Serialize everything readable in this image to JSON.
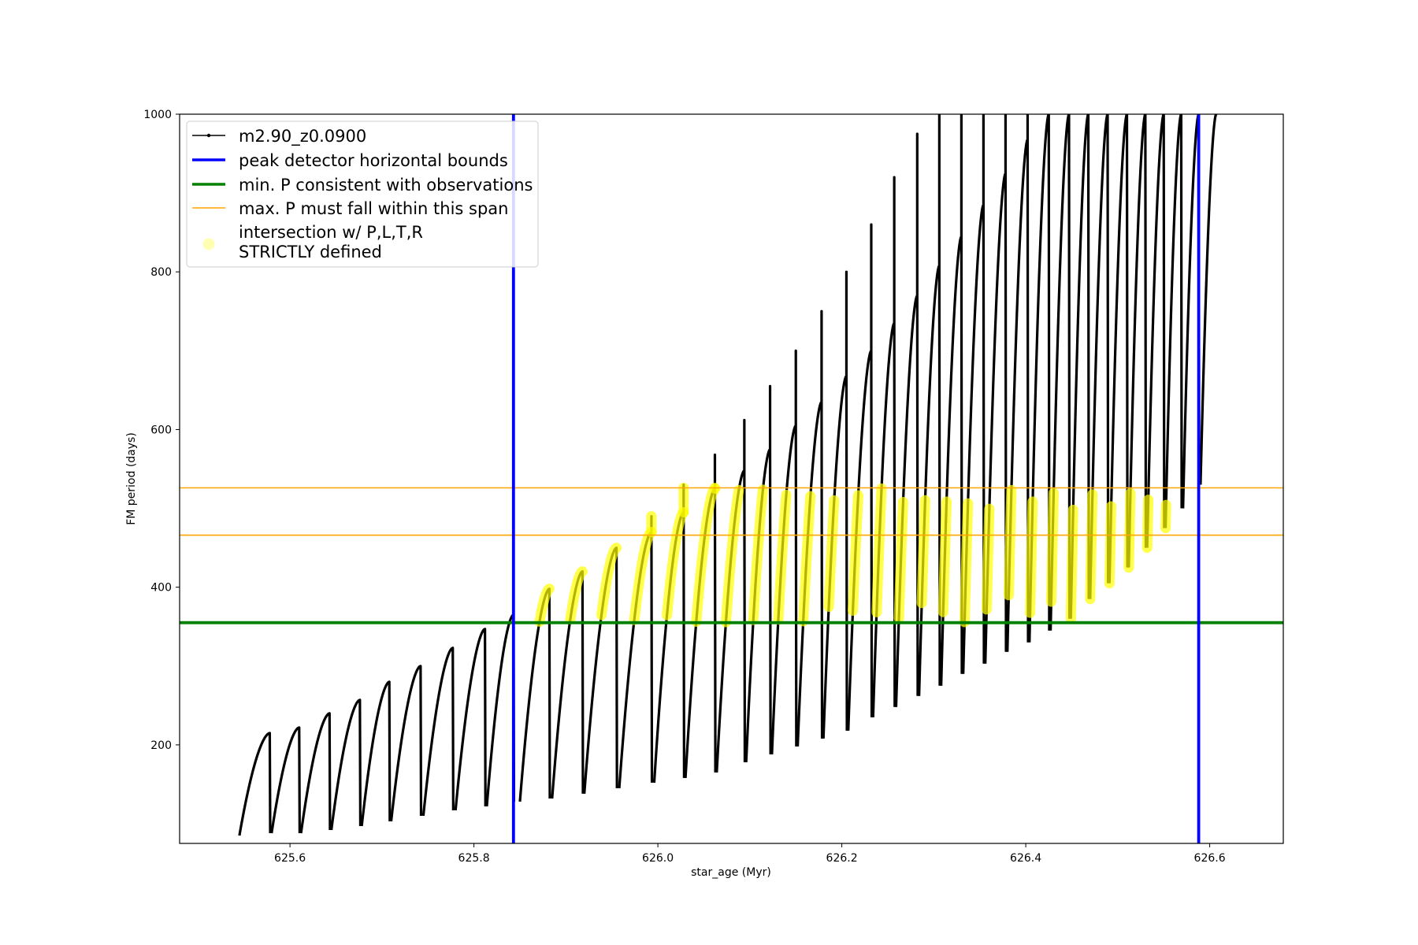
{
  "chart_data": {
    "type": "line",
    "title": "",
    "xlabel": "star_age (Myr)",
    "ylabel": "FM period (days)",
    "xlim": [
      625.48,
      626.68
    ],
    "ylim": [
      75,
      1000
    ],
    "xticks": [
      625.6,
      625.8,
      626.0,
      626.2,
      626.4,
      626.6
    ],
    "yticks": [
      200,
      400,
      600,
      800,
      1000
    ],
    "xtick_labels": [
      "625.6",
      "625.8",
      "626.0",
      "626.2",
      "626.4",
      "626.6"
    ],
    "ytick_labels": [
      "200",
      "400",
      "600",
      "800",
      "1000"
    ],
    "grid": false,
    "legend_position": "top-left",
    "legend": [
      {
        "label": "m2.90_z0.0900",
        "kind": "line-marker",
        "color": "#000000"
      },
      {
        "label": "peak detector horizontal bounds",
        "kind": "line",
        "color": "#0000ff"
      },
      {
        "label": "min. P consistent with observations",
        "kind": "line",
        "color": "#008000"
      },
      {
        "label": "max. P must fall within this span",
        "kind": "line",
        "color": "#ffa500"
      },
      {
        "label_lines": [
          "intersection w/ P,L,T,R",
          "STRICTLY defined"
        ],
        "kind": "scatter",
        "color": "#ffff00"
      }
    ],
    "vertical_lines": [
      {
        "x": 625.843,
        "color": "#0000ff",
        "role": "peak detector horizontal bounds"
      },
      {
        "x": 626.588,
        "color": "#0000ff",
        "role": "peak detector horizontal bounds"
      }
    ],
    "horizontal_lines": [
      {
        "y": 355,
        "color": "#008000",
        "role": "min. P consistent with observations"
      },
      {
        "y": 466,
        "color": "#ffa500",
        "role": "max. P must fall within this span"
      },
      {
        "y": 526,
        "color": "#ffa500",
        "role": "max. P must fall within this span"
      }
    ],
    "series": [
      {
        "name": "m2.90_z0.0900",
        "color": "#000000",
        "marker": "dot",
        "description": "sawtooth thermal pulses; each cycle rises from trough to peak then drops sharply",
        "cycles": [
          {
            "x_start": 625.545,
            "x_peak": 625.578,
            "y_start": 85,
            "y_peak": 215,
            "y_spike": 215
          },
          {
            "x_start": 625.58,
            "x_peak": 625.61,
            "y_start": 88,
            "y_peak": 222,
            "y_spike": 222
          },
          {
            "x_start": 625.612,
            "x_peak": 625.643,
            "y_start": 88,
            "y_peak": 240,
            "y_spike": 240
          },
          {
            "x_start": 625.645,
            "x_peak": 625.676,
            "y_start": 92,
            "y_peak": 257,
            "y_spike": 257
          },
          {
            "x_start": 625.678,
            "x_peak": 625.708,
            "y_start": 97,
            "y_peak": 280,
            "y_spike": 280
          },
          {
            "x_start": 625.71,
            "x_peak": 625.742,
            "y_start": 103,
            "y_peak": 300,
            "y_spike": 300
          },
          {
            "x_start": 625.745,
            "x_peak": 625.777,
            "y_start": 110,
            "y_peak": 323,
            "y_spike": 323
          },
          {
            "x_start": 625.78,
            "x_peak": 625.812,
            "y_start": 117,
            "y_peak": 347,
            "y_spike": 347
          },
          {
            "x_start": 625.814,
            "x_peak": 625.843,
            "y_start": 122,
            "y_peak": 365,
            "y_spike": 365
          },
          {
            "x_start": 625.85,
            "x_peak": 625.882,
            "y_start": 128,
            "y_peak": 398,
            "y_spike": 398
          },
          {
            "x_start": 625.885,
            "x_peak": 625.918,
            "y_start": 132,
            "y_peak": 420,
            "y_spike": 420
          },
          {
            "x_start": 625.92,
            "x_peak": 625.955,
            "y_start": 138,
            "y_peak": 450,
            "y_spike": 450
          },
          {
            "x_start": 625.958,
            "x_peak": 625.993,
            "y_start": 145,
            "y_peak": 470,
            "y_spike": 490
          },
          {
            "x_start": 625.996,
            "x_peak": 626.028,
            "y_start": 152,
            "y_peak": 495,
            "y_spike": 530
          },
          {
            "x_start": 626.03,
            "x_peak": 626.062,
            "y_start": 158,
            "y_peak": 525,
            "y_spike": 568
          },
          {
            "x_start": 626.064,
            "x_peak": 626.094,
            "y_start": 165,
            "y_peak": 548,
            "y_spike": 612
          },
          {
            "x_start": 626.096,
            "x_peak": 626.122,
            "y_start": 178,
            "y_peak": 575,
            "y_spike": 655
          },
          {
            "x_start": 626.124,
            "x_peak": 626.15,
            "y_start": 188,
            "y_peak": 605,
            "y_spike": 700
          },
          {
            "x_start": 626.152,
            "x_peak": 626.178,
            "y_start": 198,
            "y_peak": 635,
            "y_spike": 750
          },
          {
            "x_start": 626.18,
            "x_peak": 626.205,
            "y_start": 208,
            "y_peak": 668,
            "y_spike": 800
          },
          {
            "x_start": 626.207,
            "x_peak": 626.232,
            "y_start": 218,
            "y_peak": 700,
            "y_spike": 860
          },
          {
            "x_start": 626.234,
            "x_peak": 626.257,
            "y_start": 235,
            "y_peak": 735,
            "y_spike": 920
          },
          {
            "x_start": 626.259,
            "x_peak": 626.282,
            "y_start": 248,
            "y_peak": 770,
            "y_spike": 975
          },
          {
            "x_start": 626.284,
            "x_peak": 626.306,
            "y_start": 262,
            "y_peak": 808,
            "y_spike": 1000
          },
          {
            "x_start": 626.308,
            "x_peak": 626.33,
            "y_start": 275,
            "y_peak": 845,
            "y_spike": 1000
          },
          {
            "x_start": 626.332,
            "x_peak": 626.354,
            "y_start": 290,
            "y_peak": 885,
            "y_spike": 1000
          },
          {
            "x_start": 626.356,
            "x_peak": 626.378,
            "y_start": 303,
            "y_peak": 925,
            "y_spike": 1000
          },
          {
            "x_start": 626.38,
            "x_peak": 626.402,
            "y_start": 318,
            "y_peak": 968,
            "y_spike": 1000
          },
          {
            "x_start": 626.404,
            "x_peak": 626.425,
            "y_start": 330,
            "y_peak": 1000,
            "y_spike": 1000
          },
          {
            "x_start": 626.427,
            "x_peak": 626.447,
            "y_start": 345,
            "y_peak": 1000,
            "y_spike": 1000
          },
          {
            "x_start": 626.449,
            "x_peak": 626.468,
            "y_start": 360,
            "y_peak": 1000,
            "y_spike": 1000
          },
          {
            "x_start": 626.47,
            "x_peak": 626.489,
            "y_start": 385,
            "y_peak": 1000,
            "y_spike": 1000
          },
          {
            "x_start": 626.491,
            "x_peak": 626.51,
            "y_start": 405,
            "y_peak": 1000,
            "y_spike": 1000
          },
          {
            "x_start": 626.512,
            "x_peak": 626.53,
            "y_start": 425,
            "y_peak": 1000,
            "y_spike": 1000
          },
          {
            "x_start": 626.532,
            "x_peak": 626.55,
            "y_start": 450,
            "y_peak": 1000,
            "y_spike": 1000
          },
          {
            "x_start": 626.552,
            "x_peak": 626.569,
            "y_start": 475,
            "y_peak": 1000,
            "y_spike": 1000
          },
          {
            "x_start": 626.571,
            "x_peak": 626.588,
            "y_start": 500,
            "y_peak": 1000,
            "y_spike": 1000
          },
          {
            "x_start": 626.59,
            "x_peak": 626.607,
            "y_start": 530,
            "y_peak": 1000,
            "y_spike": 1000
          }
        ]
      },
      {
        "name": "intersection w/ P,L,T,R STRICTLY defined",
        "color": "#ffff00",
        "marker": "circle",
        "description": "points of the period curve with 355 <= P <= 526 between the blue bounds"
      }
    ]
  }
}
